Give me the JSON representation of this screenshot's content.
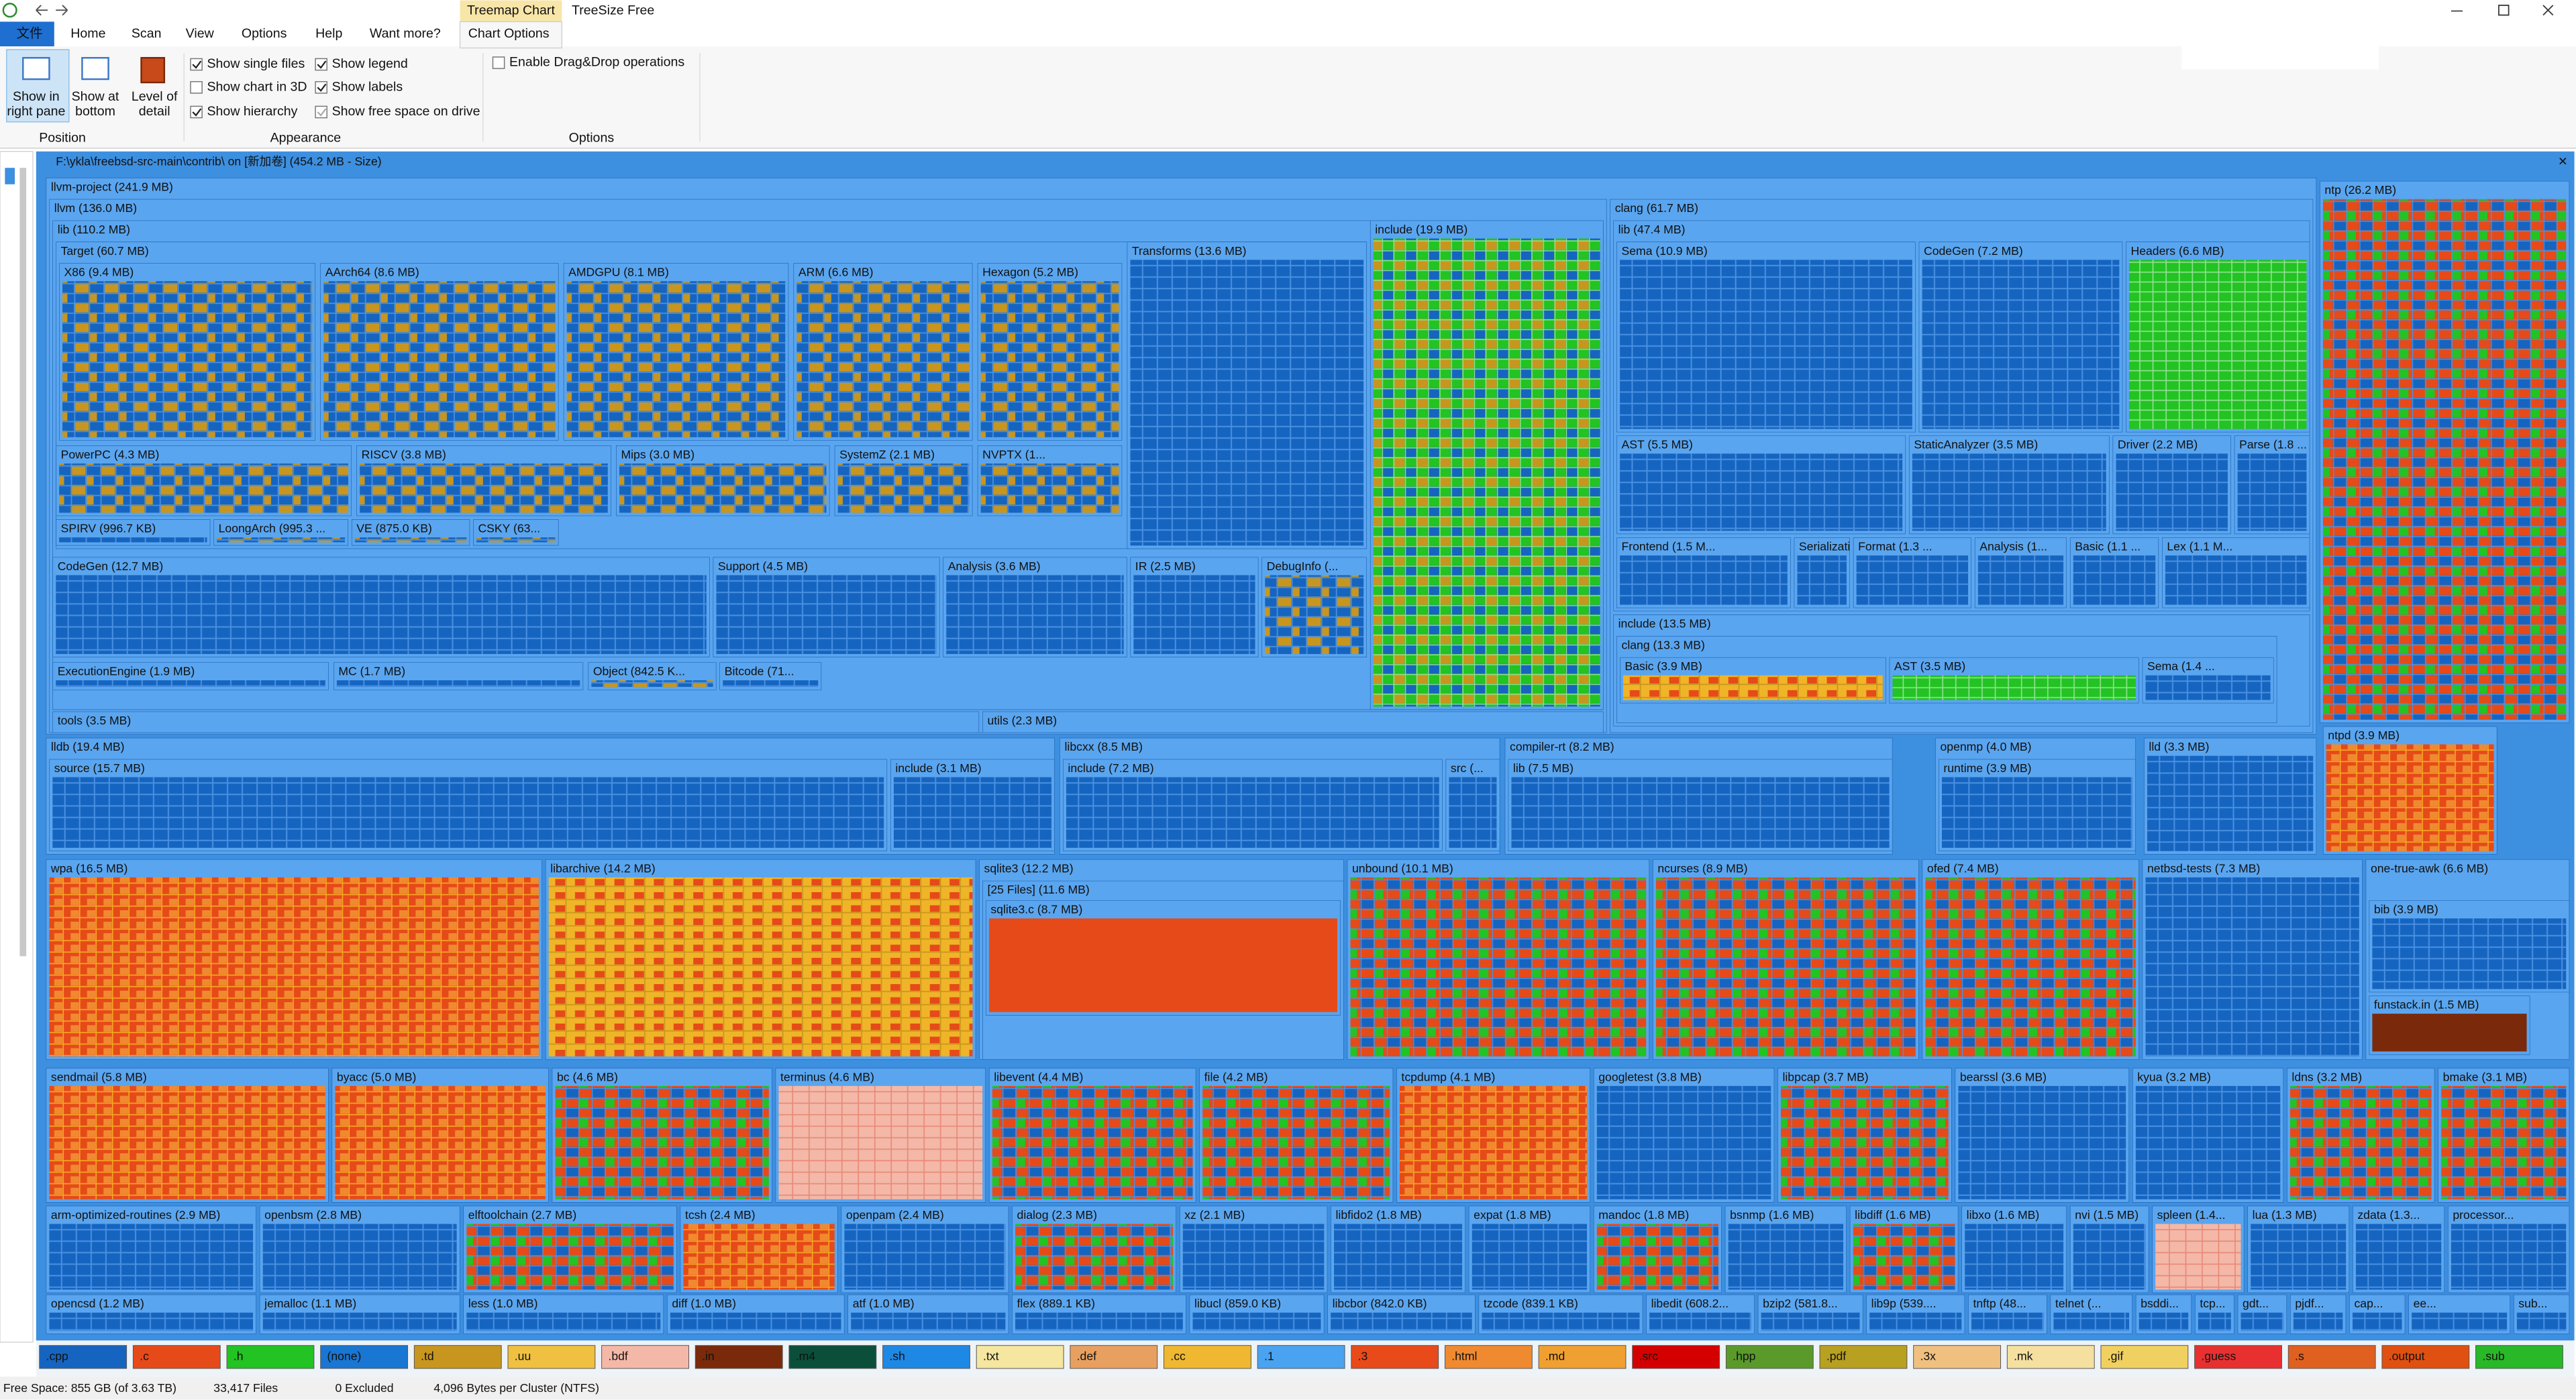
{
  "window": {
    "tab_header": "Treemap Chart",
    "title": "TreeSize Free"
  },
  "menu": [
    "文件",
    "Home",
    "Scan",
    "View",
    "Options",
    "Help",
    "Want more?",
    "Chart Options"
  ],
  "ribbon": {
    "buttons": [
      [
        "Show in",
        "right pane"
      ],
      [
        "Show at",
        "bottom"
      ],
      [
        "Level of",
        "detail"
      ]
    ],
    "checks": [
      {
        "label": "Show single files",
        "checked": true
      },
      {
        "label": "Show chart in 3D",
        "checked": false
      },
      {
        "label": "Show hierarchy",
        "checked": true
      },
      {
        "label": "Show legend",
        "checked": true
      },
      {
        "label": "Show labels",
        "checked": true
      },
      {
        "label": "Show free space on drive",
        "checked": true
      },
      {
        "label": "Enable Drag&Drop operations",
        "checked": false
      }
    ],
    "groups": [
      "Position",
      "Appearance",
      "Options"
    ]
  },
  "treemap": {
    "path": "F:\\ykla\\freebsd-src-main\\contrib\\  on  [新加卷] (454.2 MB - Size)",
    "blocks": [
      "llvm-project (241.9 MB)",
      "llvm (136.0 MB)",
      "lib (110.2 MB)",
      "Target (60.7 MB)",
      "X86 (9.4 MB)",
      "AArch64 (8.6 MB)",
      "AMDGPU (8.1 MB)",
      "ARM (6.6 MB)",
      "Hexagon (5.2 MB)",
      "PowerPC (4.3 MB)",
      "RISCV (3.8 MB)",
      "Mips (3.0 MB)",
      "SystemZ (2.1 MB)",
      "NVPTX (1...",
      "SPIRV (996.7 KB)",
      "LoongArch (995.3 ...",
      "VE (875.0 KB)",
      "CSKY (63...",
      "Transforms (13.6 MB)",
      "CodeGen (12.7 MB)",
      "Support (4.5 MB)",
      "Analysis (3.6 MB)",
      "IR (2.5 MB)",
      "DebugInfo (...",
      "ExecutionEngine (1.9 MB)",
      "MC (1.7 MB)",
      "Object (842.5 K...",
      "Bitcode (71...",
      "include (19.9 MB)",
      "tools (3.5 MB)",
      "utils (2.3 MB)",
      "clang (61.7 MB)",
      "lib (47.4 MB)",
      "Sema (10.9 MB)",
      "CodeGen (7.2 MB)",
      "Headers (6.6 MB)",
      "AST (5.5 MB)",
      "StaticAnalyzer (3.5 MB)",
      "Driver (2.2 MB)",
      "Parse (1.8 ...",
      "Frontend (1.5 M...",
      "Serialization (...",
      "Format (1.3 ...",
      "Analysis (1...",
      "Basic (1.1 ...",
      "Lex (1.1 M...",
      "include (13.5 MB)",
      "clang (13.3 MB)",
      "Basic (3.9 MB)",
      "AST (3.5 MB)",
      "Sema (1.4 ...",
      "lldb (19.4 MB)",
      "source (15.7 MB)",
      "include (3.1 MB)",
      "libcxx (8.5 MB)",
      "include (7.2 MB)",
      "src (...",
      "compiler-rt (8.2 MB)",
      "lib (7.5 MB)",
      "openmp (4.0 MB)",
      "runtime (3.9 MB)",
      "lld (3.3 MB)",
      "ntp (26.2 MB)",
      "ntpd (3.9 MB)",
      "wpa (16.5 MB)",
      "libarchive (14.2 MB)",
      "sqlite3 (12.2 MB)",
      "[25 Files] (11.6 MB)",
      "sqlite3.c (8.7 MB)",
      "unbound (10.1 MB)",
      "ncurses (8.9 MB)",
      "ofed (7.4 MB)",
      "netbsd-tests (7.3 MB)",
      "one-true-awk (6.6 MB)",
      "bib (3.9 MB)",
      "funstack.in (1.5 MB)",
      "sendmail (5.8 MB)",
      "byacc (5.0 MB)",
      "bc (4.6 MB)",
      "terminus (4.6 MB)",
      "libevent (4.4 MB)",
      "file (4.2 MB)",
      "tcpdump (4.1 MB)",
      "googletest (3.8 MB)",
      "libpcap (3.7 MB)",
      "bearssl (3.6 MB)",
      "kyua (3.2 MB)",
      "ldns (3.2 MB)",
      "bmake (3.1 MB)",
      "arm-optimized-routines (2.9 MB)",
      "openbsm (2.8 MB)",
      "elftoolchain (2.7 MB)",
      "tcsh (2.4 MB)",
      "openpam (2.4 MB)",
      "dialog (2.3 MB)",
      "xz (2.1 MB)",
      "libfido2 (1.8 MB)",
      "expat (1.8 MB)",
      "mandoc (1.8 MB)",
      "bsnmp (1.6 MB)",
      "libdiff (1.6 MB)",
      "libxo (1.6 MB)",
      "nvi (1.5 MB)",
      "spleen (1.4...",
      "lua (1.3 MB)",
      "zdata (1.3...",
      "processor...",
      "opencsd (1.2 MB)",
      "jemalloc (1.1 MB)",
      "less (1.0 MB)",
      "diff (1.0 MB)",
      "atf (1.0 MB)",
      "flex (889.1 KB)",
      "libucl (859.0 KB)",
      "libcbor (842.0 KB)",
      "tzcode (839.1 KB)",
      "libedit (608.2...",
      "bzip2 (581.8...",
      "lib9p (539....",
      "tnftp (48...",
      "telnet (...",
      "bsddi...",
      "tcp...",
      "gdt...",
      "pjdf...",
      "cap...",
      "ee...",
      "sub..."
    ]
  },
  "legend": [
    {
      "label": ".cpp",
      "color": "#1565c0"
    },
    {
      "label": ".c",
      "color": "#e64a19"
    },
    {
      "label": ".h",
      "color": "#22c322"
    },
    {
      "label": "(none)",
      "color": "#1976d2"
    },
    {
      "label": ".td",
      "color": "#c8961e"
    },
    {
      "label": ".uu",
      "color": "#f0c040"
    },
    {
      "label": ".bdf",
      "color": "#f4b8a8"
    },
    {
      "label": ".in",
      "color": "#7a2a0a"
    },
    {
      "label": ".m4",
      "color": "#0b4f3a"
    },
    {
      "label": ".sh",
      "color": "#1e88e5"
    },
    {
      "label": ".txt",
      "color": "#f5e6a0"
    },
    {
      "label": ".def",
      "color": "#e8a060"
    },
    {
      "label": ".cc",
      "color": "#f0b830"
    },
    {
      "label": ".1",
      "color": "#4aa3f0"
    },
    {
      "label": ".3",
      "color": "#e84a1a"
    },
    {
      "label": ".html",
      "color": "#f08a30"
    },
    {
      "label": ".md",
      "color": "#f0a030"
    },
    {
      "label": ".src",
      "color": "#d40000"
    },
    {
      "label": ".hpp",
      "color": "#5a9a2a"
    },
    {
      "label": ".pdf",
      "color": "#b8a020"
    },
    {
      "label": ".3x",
      "color": "#f0c080"
    },
    {
      "label": ".mk",
      "color": "#f5e0a0"
    },
    {
      "label": ".gif",
      "color": "#f0d060"
    },
    {
      "label": ".guess",
      "color": "#e83030"
    },
    {
      "label": ".s",
      "color": "#e06020"
    },
    {
      "label": ".output",
      "color": "#e05010"
    },
    {
      "label": ".sub",
      "color": "#28b828"
    }
  ],
  "status": [
    "Free Space: 855 GB (of 3.63 TB)",
    "33,417 Files",
    "0 Excluded",
    "4,096 Bytes per Cluster (NTFS)"
  ]
}
